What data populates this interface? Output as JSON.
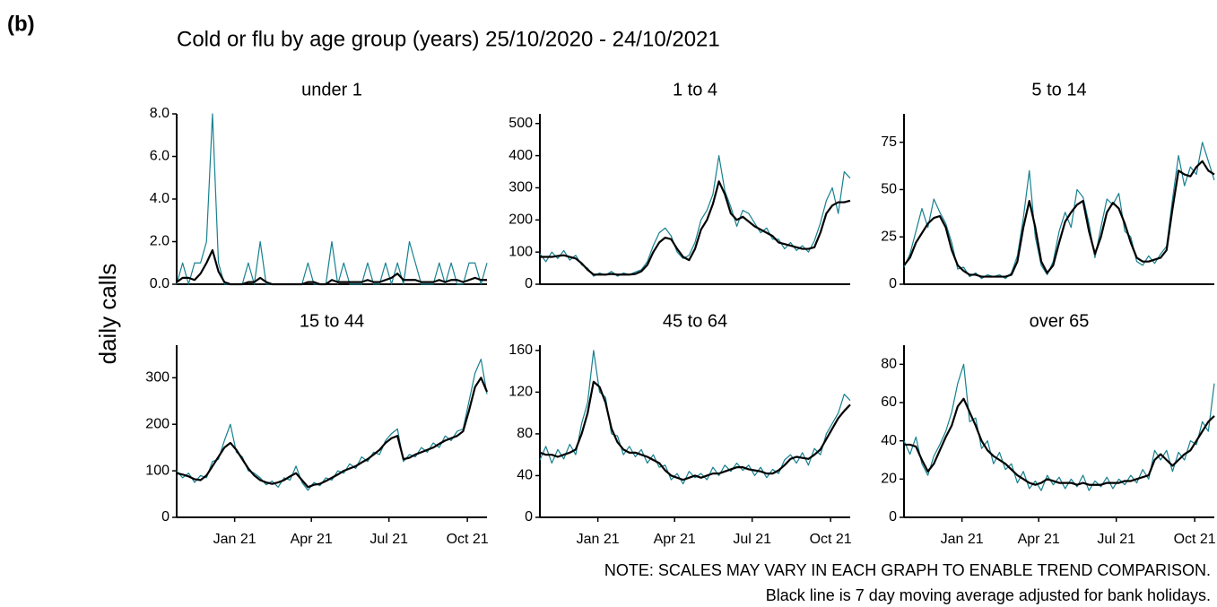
{
  "figure_label": "(b)",
  "title": "Cold or flu by age group (years) 25/10/2020 - 24/10/2021",
  "ylabel": "daily calls",
  "notes": [
    "NOTE: SCALES MAY VARY IN EACH GRAPH TO ENABLE TREND COMPARISON.",
    "Black line is 7 day moving average adjusted for bank holidays."
  ],
  "chart_data": [
    {
      "type": "line",
      "title": "under 1",
      "xlim": [
        "2020-10-25",
        "2021-10-24"
      ],
      "ylim": [
        0,
        8
      ],
      "yticks": [
        {
          "value": 0,
          "label": "0.0"
        },
        {
          "value": 2,
          "label": "2.0"
        },
        {
          "value": 4,
          "label": "4.0"
        },
        {
          "value": 6,
          "label": "6.0"
        },
        {
          "value": 8,
          "label": "8.0"
        }
      ],
      "series": [
        {
          "color": "#17808f",
          "values": [
            0,
            1,
            0,
            1,
            1,
            2,
            8,
            1,
            0,
            0,
            0,
            0,
            1,
            0,
            2,
            0,
            0,
            0,
            0,
            0,
            0,
            0,
            1,
            0,
            0,
            0,
            2,
            0,
            1,
            0,
            0,
            0,
            1,
            0,
            0,
            1,
            0,
            1,
            0,
            2,
            1,
            0,
            0,
            0,
            1,
            0,
            1,
            0,
            0,
            1,
            1,
            0,
            1
          ]
        },
        {
          "color": "#000000",
          "values": [
            0.1,
            0.3,
            0.3,
            0.2,
            0.5,
            1,
            1.6,
            0.6,
            0.1,
            0,
            0,
            0,
            0.1,
            0.1,
            0.3,
            0.1,
            0,
            0,
            0,
            0,
            0,
            0,
            0.1,
            0.1,
            0,
            0,
            0.2,
            0.1,
            0.1,
            0.1,
            0.1,
            0.1,
            0.2,
            0.1,
            0.1,
            0.2,
            0.3,
            0.5,
            0.2,
            0.2,
            0.2,
            0.1,
            0.1,
            0.1,
            0.2,
            0.1,
            0.2,
            0.2,
            0.1,
            0.2,
            0.3,
            0.2,
            0.2
          ]
        }
      ]
    },
    {
      "type": "line",
      "title": "1 to 4",
      "xlim": [
        "2020-10-25",
        "2021-10-24"
      ],
      "ylim": [
        0,
        530
      ],
      "yticks": [
        0,
        100,
        200,
        300,
        400,
        500
      ],
      "series": [
        {
          "color": "#17808f",
          "values": [
            95,
            70,
            100,
            80,
            105,
            75,
            90,
            60,
            50,
            25,
            35,
            28,
            40,
            25,
            35,
            30,
            38,
            45,
            70,
            120,
            160,
            175,
            150,
            100,
            80,
            90,
            130,
            200,
            230,
            280,
            400,
            290,
            240,
            180,
            230,
            220,
            190,
            160,
            175,
            140,
            140,
            110,
            130,
            105,
            120,
            100,
            135,
            190,
            260,
            300,
            220,
            350,
            330
          ]
        },
        {
          "color": "#000000",
          "values": [
            85,
            85,
            85,
            88,
            90,
            85,
            80,
            65,
            45,
            30,
            30,
            30,
            32,
            30,
            30,
            30,
            32,
            40,
            60,
            100,
            130,
            145,
            140,
            110,
            85,
            75,
            110,
            170,
            200,
            250,
            320,
            280,
            220,
            200,
            210,
            195,
            180,
            170,
            160,
            150,
            130,
            125,
            120,
            115,
            110,
            110,
            115,
            160,
            220,
            245,
            255,
            255,
            260
          ]
        }
      ]
    },
    {
      "type": "line",
      "title": "5 to 14",
      "xlim": [
        "2020-10-25",
        "2021-10-24"
      ],
      "ylim": [
        0,
        90
      ],
      "yticks": [
        0,
        25,
        50,
        75
      ],
      "series": [
        {
          "color": "#17808f",
          "values": [
            9,
            16,
            28,
            40,
            30,
            45,
            38,
            32,
            22,
            8,
            9,
            4,
            6,
            3,
            5,
            4,
            5,
            3,
            6,
            15,
            35,
            60,
            25,
            10,
            5,
            12,
            28,
            38,
            30,
            50,
            46,
            32,
            14,
            30,
            45,
            42,
            48,
            28,
            25,
            12,
            10,
            15,
            11,
            16,
            20,
            45,
            68,
            52,
            62,
            58,
            75,
            65,
            55
          ]
        },
        {
          "color": "#000000",
          "values": [
            10,
            14,
            22,
            27,
            32,
            35,
            36,
            30,
            18,
            10,
            7,
            5,
            5,
            4,
            4,
            4,
            4,
            4,
            5,
            12,
            30,
            44,
            30,
            12,
            6,
            10,
            22,
            33,
            38,
            42,
            44,
            28,
            16,
            25,
            38,
            43,
            40,
            32,
            22,
            14,
            12,
            12,
            13,
            14,
            18,
            40,
            60,
            58,
            57,
            62,
            65,
            60,
            58
          ]
        }
      ]
    },
    {
      "type": "line",
      "title": "15 to 44",
      "xlim": [
        "2020-10-25",
        "2021-10-24"
      ],
      "ylim": [
        0,
        370
      ],
      "yticks": [
        0,
        100,
        200,
        300
      ],
      "xticks": [
        {
          "value": "2021-01",
          "label": "Jan 21"
        },
        {
          "value": "2021-04",
          "label": "Apr 21"
        },
        {
          "value": "2021-07",
          "label": "Jul 21"
        },
        {
          "value": "2021-10",
          "label": "Oct 21"
        }
      ],
      "series": [
        {
          "color": "#17808f",
          "values": [
            100,
            85,
            95,
            75,
            90,
            85,
            120,
            125,
            165,
            200,
            140,
            130,
            100,
            95,
            85,
            70,
            78,
            65,
            85,
            80,
            110,
            75,
            58,
            75,
            68,
            85,
            80,
            100,
            95,
            115,
            105,
            130,
            120,
            140,
            135,
            165,
            180,
            190,
            120,
            135,
            130,
            150,
            140,
            160,
            150,
            175,
            165,
            185,
            190,
            250,
            310,
            340,
            265
          ]
        },
        {
          "color": "#000000",
          "values": [
            95,
            92,
            88,
            82,
            80,
            90,
            110,
            130,
            150,
            160,
            145,
            125,
            105,
            90,
            80,
            75,
            72,
            75,
            80,
            88,
            95,
            80,
            65,
            70,
            72,
            78,
            85,
            92,
            100,
            105,
            110,
            118,
            125,
            135,
            145,
            160,
            170,
            175,
            125,
            128,
            135,
            140,
            145,
            150,
            158,
            165,
            170,
            175,
            185,
            230,
            280,
            300,
            270
          ]
        }
      ]
    },
    {
      "type": "line",
      "title": "45 to 64",
      "xlim": [
        "2020-10-25",
        "2021-10-24"
      ],
      "ylim": [
        0,
        165
      ],
      "yticks": [
        0,
        40,
        80,
        120,
        160
      ],
      "xticks": [
        {
          "value": "2021-01",
          "label": "Jan 21"
        },
        {
          "value": "2021-04",
          "label": "Apr 21"
        },
        {
          "value": "2021-07",
          "label": "Jul 21"
        },
        {
          "value": "2021-10",
          "label": "Oct 21"
        }
      ],
      "series": [
        {
          "color": "#17808f",
          "values": [
            55,
            68,
            52,
            65,
            56,
            70,
            60,
            90,
            110,
            160,
            120,
            115,
            80,
            78,
            60,
            68,
            58,
            65,
            52,
            60,
            48,
            50,
            36,
            42,
            32,
            44,
            38,
            42,
            36,
            48,
            40,
            50,
            44,
            52,
            45,
            50,
            40,
            48,
            38,
            46,
            42,
            55,
            60,
            52,
            62,
            50,
            66,
            60,
            80,
            90,
            100,
            118,
            112
          ]
        },
        {
          "color": "#000000",
          "values": [
            62,
            60,
            60,
            58,
            60,
            62,
            65,
            80,
            100,
            130,
            125,
            110,
            85,
            72,
            65,
            62,
            62,
            60,
            58,
            55,
            52,
            45,
            40,
            38,
            36,
            38,
            40,
            38,
            40,
            42,
            42,
            44,
            46,
            48,
            48,
            46,
            45,
            44,
            42,
            42,
            45,
            50,
            56,
            58,
            57,
            56,
            60,
            65,
            75,
            85,
            95,
            102,
            108
          ]
        }
      ]
    },
    {
      "type": "line",
      "title": "over 65",
      "xlim": [
        "2020-10-25",
        "2021-10-24"
      ],
      "ylim": [
        0,
        90
      ],
      "yticks": [
        0,
        20,
        40,
        60,
        80
      ],
      "xticks": [
        {
          "value": "2021-01",
          "label": "Jan 21"
        },
        {
          "value": "2021-04",
          "label": "Apr 21"
        },
        {
          "value": "2021-07",
          "label": "Jul 21"
        },
        {
          "value": "2021-10",
          "label": "Oct 21"
        }
      ],
      "series": [
        {
          "color": "#17808f",
          "values": [
            40,
            33,
            42,
            28,
            22,
            32,
            38,
            45,
            55,
            70,
            80,
            50,
            52,
            36,
            40,
            28,
            34,
            25,
            28,
            18,
            24,
            15,
            19,
            14,
            22,
            17,
            21,
            15,
            20,
            16,
            22,
            14,
            19,
            16,
            21,
            15,
            20,
            17,
            22,
            18,
            25,
            20,
            35,
            30,
            35,
            24,
            34,
            30,
            40,
            38,
            50,
            45,
            70
          ]
        },
        {
          "color": "#000000",
          "values": [
            38,
            38,
            37,
            30,
            24,
            28,
            35,
            42,
            48,
            58,
            62,
            55,
            48,
            40,
            35,
            32,
            30,
            28,
            25,
            22,
            20,
            18,
            17,
            18,
            20,
            19,
            18,
            18,
            18,
            17,
            18,
            17,
            17,
            17,
            18,
            18,
            18,
            19,
            19,
            20,
            21,
            22,
            30,
            33,
            30,
            27,
            30,
            33,
            35,
            40,
            45,
            50,
            53
          ]
        }
      ]
    }
  ]
}
